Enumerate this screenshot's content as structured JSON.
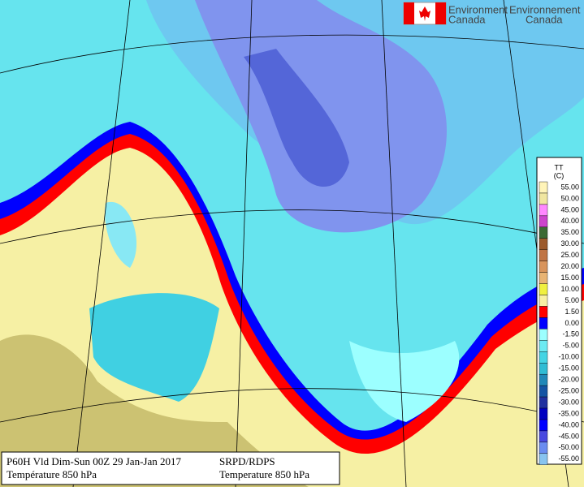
{
  "header": {
    "agency_en": "Environment",
    "country_en": "Canada",
    "agency_fr": "Environnement",
    "country_fr": "Canada"
  },
  "legend": {
    "title": "TT",
    "unit": "(C)",
    "entries": [
      {
        "label": "55.00",
        "color": "#fff4b8"
      },
      {
        "label": "50.00",
        "color": "#f0e6a0"
      },
      {
        "label": "45.00",
        "color": "#ff88ff"
      },
      {
        "label": "40.00",
        "color": "#cc44cc"
      },
      {
        "label": "35.00",
        "color": "#3c6a34"
      },
      {
        "label": "30.00",
        "color": "#9c5a2c"
      },
      {
        "label": "25.00",
        "color": "#c07444"
      },
      {
        "label": "20.00",
        "color": "#d8945c"
      },
      {
        "label": "15.00",
        "color": "#e8b474"
      },
      {
        "label": "10.00",
        "color": "#f0f040"
      },
      {
        "label": "5.00",
        "color": "#f8f0a4"
      },
      {
        "label": "1.50",
        "color": "#ff0000"
      },
      {
        "label": "0.00",
        "color": "#0000ff"
      },
      {
        "label": "-1.50",
        "color": "#9cffff"
      },
      {
        "label": "-5.00",
        "color": "#6ceaf2"
      },
      {
        "label": "-10.00",
        "color": "#44d4e4"
      },
      {
        "label": "-15.00",
        "color": "#30bcd4"
      },
      {
        "label": "-20.00",
        "color": "#2088b8"
      },
      {
        "label": "-25.00",
        "color": "#1454a4"
      },
      {
        "label": "-30.00",
        "color": "#2030a0"
      },
      {
        "label": "-35.00",
        "color": "#0000c0"
      },
      {
        "label": "-40.00",
        "color": "#0000ff"
      },
      {
        "label": "-45.00",
        "color": "#4848e0"
      },
      {
        "label": "-50.00",
        "color": "#6a8cf0"
      },
      {
        "label": "-55.00",
        "color": "#88c4f0"
      }
    ]
  },
  "info": {
    "run": "P60H Vld Dim-Sun 00Z 29 Jan-Jan 2017",
    "field_fr": "Température 850 hPa",
    "model": "SRPD/RDPS",
    "field_en": "Temperature 850 hPa"
  }
}
